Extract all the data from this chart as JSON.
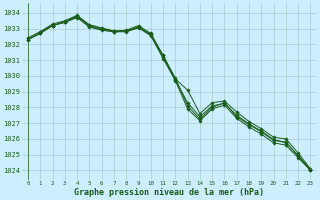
{
  "background_color": "#cceeff",
  "grid_color": "#aacccc",
  "line_color": "#1a5c1a",
  "title": "Graphe pression niveau de la mer (hPa)",
  "ylabel_values": [
    1024,
    1025,
    1026,
    1027,
    1028,
    1029,
    1030,
    1031,
    1032,
    1033,
    1034
  ],
  "xlim": [
    -0.5,
    23.5
  ],
  "ylim": [
    1023.4,
    1034.6
  ],
  "series": [
    [
      1032.4,
      1032.8,
      1033.2,
      1033.4,
      1033.75,
      1033.2,
      1033.0,
      1032.85,
      1032.85,
      1033.1,
      1032.65,
      1031.3,
      1029.85,
      1028.1,
      1027.25,
      1028.0,
      1028.3,
      1027.4,
      1026.9,
      1026.45,
      1025.9,
      1025.8,
      1024.9,
      1024.0
    ],
    [
      1032.4,
      1032.8,
      1033.3,
      1033.5,
      1033.85,
      1033.25,
      1033.05,
      1032.85,
      1032.9,
      1033.2,
      1032.7,
      1031.3,
      1029.8,
      1029.1,
      1027.6,
      1028.3,
      1028.4,
      1027.7,
      1027.1,
      1026.65,
      1026.1,
      1026.0,
      1025.1,
      1024.1
    ],
    [
      1032.3,
      1032.7,
      1033.2,
      1033.4,
      1033.7,
      1033.1,
      1032.9,
      1032.8,
      1032.8,
      1033.05,
      1032.55,
      1031.1,
      1029.7,
      1027.9,
      1027.15,
      1027.9,
      1028.15,
      1027.3,
      1026.75,
      1026.3,
      1025.75,
      1025.6,
      1024.8,
      1024.0
    ],
    [
      1032.3,
      1032.7,
      1033.2,
      1033.45,
      1033.8,
      1033.15,
      1032.95,
      1032.8,
      1032.85,
      1033.1,
      1032.6,
      1031.2,
      1029.75,
      1028.3,
      1027.4,
      1028.1,
      1028.25,
      1027.5,
      1026.95,
      1026.5,
      1025.95,
      1025.75,
      1024.95,
      1024.05
    ]
  ]
}
